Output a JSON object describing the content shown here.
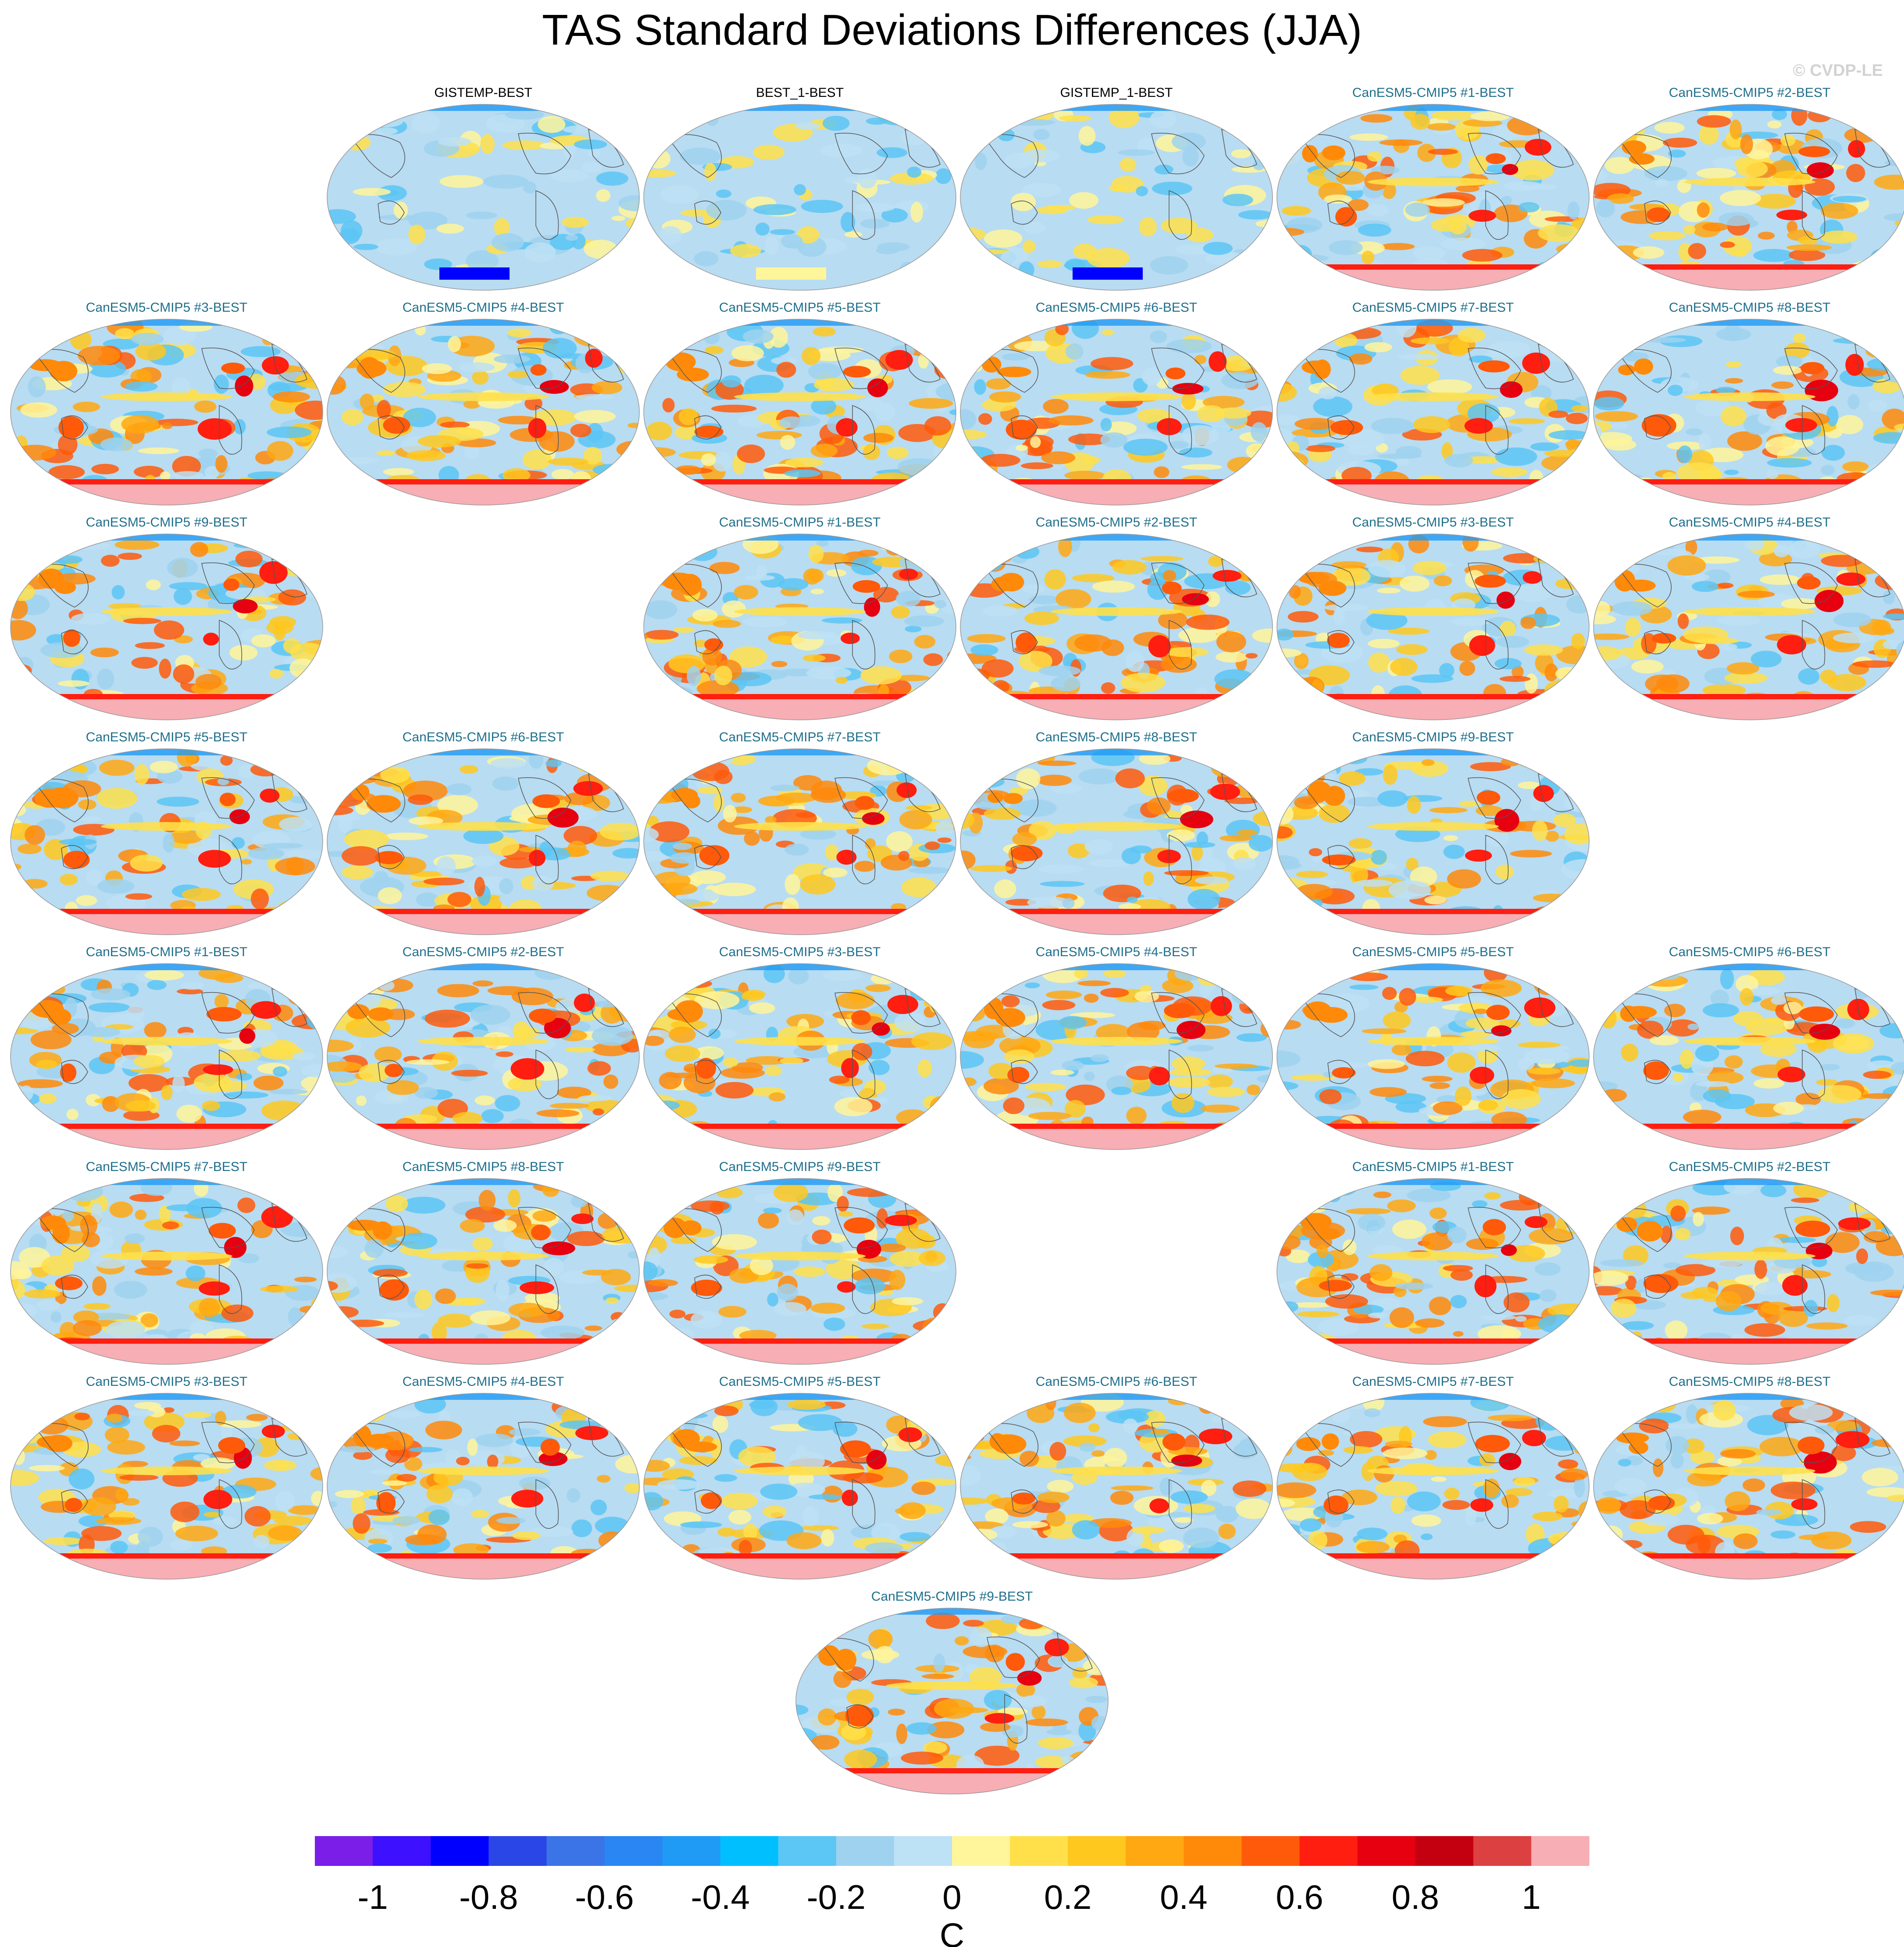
{
  "title": "TAS Standard Deviations Differences (JJA)",
  "watermark": "© CVDP-LE",
  "colors": {
    "obs_title": "#000000",
    "model_title": "#1f6f8b",
    "land_line": "#555555",
    "ocean_base": "#b8dcf2"
  },
  "panels": [
    {
      "label": "GISTEMP-BEST",
      "kind": "obs"
    },
    {
      "label": "BEST_1-BEST",
      "kind": "obs"
    },
    {
      "label": "GISTEMP_1-BEST",
      "kind": "obs"
    },
    {
      "label": "CanESM5-CMIP5 #1-BEST",
      "kind": "model"
    },
    {
      "label": "CanESM5-CMIP5 #2-BEST",
      "kind": "model"
    },
    {
      "label": "CanESM5-CMIP5 #3-BEST",
      "kind": "model"
    },
    {
      "label": "CanESM5-CMIP5 #4-BEST",
      "kind": "model"
    },
    {
      "label": "CanESM5-CMIP5 #5-BEST",
      "kind": "model"
    },
    {
      "label": "CanESM5-CMIP5 #6-BEST",
      "kind": "model"
    },
    {
      "label": "CanESM5-CMIP5 #7-BEST",
      "kind": "model"
    },
    {
      "label": "CanESM5-CMIP5 #8-BEST",
      "kind": "model"
    },
    {
      "label": "CanESM5-CMIP5 #9-BEST",
      "kind": "model"
    },
    {
      "label": "CanESM5-CMIP5 #1-BEST",
      "kind": "model"
    },
    {
      "label": "CanESM5-CMIP5 #2-BEST",
      "kind": "model"
    },
    {
      "label": "CanESM5-CMIP5 #3-BEST",
      "kind": "model"
    },
    {
      "label": "CanESM5-CMIP5 #4-BEST",
      "kind": "model"
    },
    {
      "label": "CanESM5-CMIP5 #5-BEST",
      "kind": "model"
    },
    {
      "label": "CanESM5-CMIP5 #6-BEST",
      "kind": "model"
    },
    {
      "label": "CanESM5-CMIP5 #7-BEST",
      "kind": "model"
    },
    {
      "label": "CanESM5-CMIP5 #8-BEST",
      "kind": "model"
    },
    {
      "label": "CanESM5-CMIP5 #9-BEST",
      "kind": "model"
    },
    {
      "label": "CanESM5-CMIP5 #1-BEST",
      "kind": "model"
    },
    {
      "label": "CanESM5-CMIP5 #2-BEST",
      "kind": "model"
    },
    {
      "label": "CanESM5-CMIP5 #3-BEST",
      "kind": "model"
    },
    {
      "label": "CanESM5-CMIP5 #4-BEST",
      "kind": "model"
    },
    {
      "label": "CanESM5-CMIP5 #5-BEST",
      "kind": "model"
    },
    {
      "label": "CanESM5-CMIP5 #6-BEST",
      "kind": "model"
    },
    {
      "label": "CanESM5-CMIP5 #7-BEST",
      "kind": "model"
    },
    {
      "label": "CanESM5-CMIP5 #8-BEST",
      "kind": "model"
    },
    {
      "label": "CanESM5-CMIP5 #9-BEST",
      "kind": "model"
    },
    {
      "label": "CanESM5-CMIP5 #1-BEST",
      "kind": "model"
    },
    {
      "label": "CanESM5-CMIP5 #2-BEST",
      "kind": "model"
    },
    {
      "label": "CanESM5-CMIP5 #3-BEST",
      "kind": "model"
    },
    {
      "label": "CanESM5-CMIP5 #4-BEST",
      "kind": "model"
    },
    {
      "label": "CanESM5-CMIP5 #5-BEST",
      "kind": "model"
    },
    {
      "label": "CanESM5-CMIP5 #6-BEST",
      "kind": "model"
    },
    {
      "label": "CanESM5-CMIP5 #7-BEST",
      "kind": "model"
    },
    {
      "label": "CanESM5-CMIP5 #8-BEST",
      "kind": "model"
    },
    {
      "label": "CanESM5-CMIP5 #9-BEST",
      "kind": "model"
    }
  ],
  "chart_data": {
    "type": "heatmap",
    "title": "TAS Standard Deviations Differences (JJA)",
    "colorbar": {
      "label": "C",
      "levels": [
        -1.1,
        -1,
        -0.9,
        -0.8,
        -0.7,
        -0.6,
        -0.5,
        -0.4,
        -0.3,
        -0.2,
        -0.1,
        0,
        0.1,
        0.2,
        0.3,
        0.4,
        0.5,
        0.6,
        0.7,
        0.8,
        0.9,
        1,
        1.1
      ],
      "tick_labels": [
        "-1",
        "-0.8",
        "-0.6",
        "-0.4",
        "-0.2",
        "0",
        "0.2",
        "0.4",
        "0.6",
        "0.8",
        "1"
      ],
      "colors": [
        "#7a1ee8",
        "#3d10ff",
        "#0000ff",
        "#2a46e6",
        "#3a74e6",
        "#2a86f2",
        "#1f9af5",
        "#00bfff",
        "#5cc6f5",
        "#9fd2ef",
        "#bde1f5",
        "#fff59a",
        "#ffe04a",
        "#ffc81f",
        "#ffa812",
        "#ff8a0a",
        "#ff5a0a",
        "#ff1e10",
        "#e60010",
        "#c40010",
        "#dc4040",
        "#f7aeb4"
      ]
    }
  }
}
